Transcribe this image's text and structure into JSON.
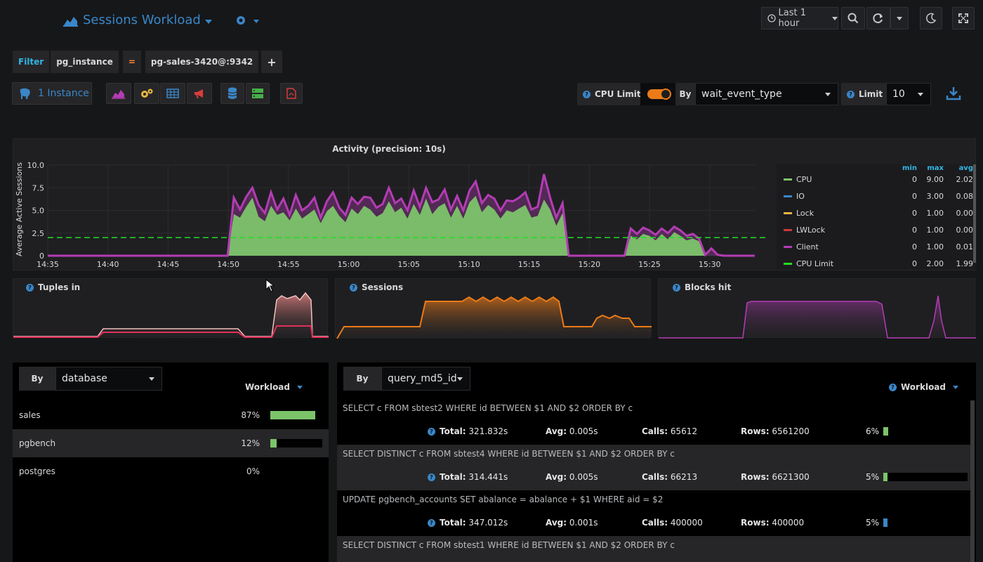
{
  "header": {
    "title": "Sessions Workload",
    "time_range": "Last 1 hour"
  },
  "filter": {
    "label": "Filter",
    "key": "pg_instance",
    "operator": "=",
    "value": "pg-sales-3420@:9342",
    "add": "+"
  },
  "toolbar": {
    "instance_label": "1 Instance",
    "cpu_limit_label": "CPU Limit",
    "by_label": "By",
    "wait_event": "wait_event_type",
    "limit_label": "Limit",
    "limit_value": "10"
  },
  "activity": {
    "title": "Activity (precision: 10s)",
    "ylabel": "Average Active Sessions",
    "legend_headers": [
      "min",
      "max",
      "avg"
    ],
    "legend": [
      {
        "name": "CPU",
        "color": "#7cc46a",
        "min": "0",
        "max": "9.00",
        "avg": "2.02"
      },
      {
        "name": "IO",
        "color": "#3a86c8",
        "min": "0",
        "max": "3.00",
        "avg": "0.08"
      },
      {
        "name": "Lock",
        "color": "#e6b540",
        "min": "0",
        "max": "1.00",
        "avg": "0.00"
      },
      {
        "name": "LWLock",
        "color": "#c63a3a",
        "min": "0",
        "max": "1.00",
        "avg": "0.00"
      },
      {
        "name": "Client",
        "color": "#b43cb4",
        "min": "0",
        "max": "1.00",
        "avg": "0.01"
      },
      {
        "name": "CPU Limit",
        "color": "#22dd22",
        "min": "0",
        "max": "2.00",
        "avg": "1.99"
      }
    ]
  },
  "chart_data": {
    "type": "area",
    "title": "Activity (precision: 10s)",
    "xlabel": "",
    "ylabel": "Average Active Sessions",
    "ylim": [
      0,
      10
    ],
    "yticks": [
      "0",
      "2.5",
      "5.0",
      "7.5",
      "10.0"
    ],
    "xticks": [
      "14:35",
      "14:40",
      "14:45",
      "14:50",
      "14:55",
      "15:00",
      "15:05",
      "15:10",
      "15:15",
      "15:20",
      "15:25",
      "15:30"
    ],
    "series": [
      {
        "name": "CPU",
        "values": [
          0,
          0,
          0,
          0,
          0,
          0,
          0,
          0,
          0,
          0,
          0,
          0,
          0,
          0,
          0,
          0,
          0,
          0,
          0,
          0,
          0,
          0,
          0,
          0,
          0,
          0,
          0,
          0,
          0,
          0,
          4.6,
          4.2,
          5.4,
          6.4,
          4.3,
          3.8,
          5.5,
          4.5,
          4.8,
          3.9,
          5.2,
          4.1,
          4.6,
          5.1,
          3.6,
          4.9,
          5.5,
          4.4,
          3.7,
          5.2,
          4.6,
          5.5,
          5.1,
          4.3,
          4.7,
          6.0,
          4.8,
          5.3,
          4.1,
          5.7,
          4.5,
          6.3,
          4.6,
          5.4,
          5.8,
          4.2,
          5.5,
          4.1,
          5.9,
          6.6,
          4.8,
          5.6,
          5.1,
          4.1,
          5.0,
          4.8,
          5.2,
          5.6,
          4.2,
          4.4,
          6.2,
          5.1,
          3.3,
          4.7,
          0,
          0,
          0,
          0,
          0,
          0,
          0,
          0,
          0,
          0,
          2.2,
          1.8,
          2.4,
          2.2,
          1.7,
          2.4,
          1.8,
          2.6,
          2.2,
          1.7,
          1.9,
          1.6,
          0,
          0,
          0,
          0,
          0,
          0,
          0,
          0,
          0
        ]
      },
      {
        "name": "Client",
        "values": [
          0,
          0,
          0,
          0,
          0,
          0,
          0,
          0,
          0,
          0,
          0,
          0,
          0,
          0,
          0,
          0,
          0,
          0,
          0,
          0,
          0,
          0,
          0,
          0,
          0,
          0,
          0,
          0,
          0,
          0,
          6.4,
          5.1,
          6.5,
          7.5,
          5.6,
          4.7,
          7.0,
          5.1,
          6.3,
          4.5,
          6.7,
          5.0,
          5.5,
          6.4,
          4.2,
          6.0,
          7.0,
          5.3,
          4.5,
          6.4,
          5.7,
          6.5,
          6.4,
          5.3,
          5.7,
          7.5,
          5.8,
          6.3,
          5.0,
          7.2,
          5.4,
          7.5,
          5.9,
          6.2,
          7.3,
          5.1,
          6.6,
          5.0,
          7.2,
          8.2,
          5.8,
          6.7,
          6.3,
          5.0,
          6.1,
          6.0,
          6.4,
          7.0,
          5.1,
          5.4,
          9.0,
          6.4,
          4.2,
          5.8,
          0,
          0,
          0,
          0,
          0,
          0,
          0,
          0,
          0,
          0,
          3.0,
          2.4,
          3.1,
          2.8,
          2.3,
          3.0,
          2.5,
          3.2,
          2.8,
          2.2,
          2.4,
          1.9,
          0.1,
          0.8,
          0.1,
          0,
          0,
          0,
          0,
          0,
          0
        ]
      },
      {
        "name": "CPU Limit",
        "values": [
          2,
          2,
          2,
          2,
          2,
          2,
          2,
          2,
          2,
          2,
          2,
          2,
          2,
          2,
          2,
          2,
          2,
          2,
          2,
          2,
          2,
          2,
          2,
          2,
          2,
          2,
          2,
          2,
          2,
          2,
          2,
          2,
          2,
          2,
          2,
          2,
          2,
          2,
          2,
          2,
          2,
          2,
          2,
          2,
          2,
          2,
          2,
          2,
          2,
          2,
          2,
          2,
          2,
          2,
          2,
          2,
          2,
          2,
          2,
          2,
          2,
          2,
          2,
          2,
          2,
          2,
          2,
          2,
          2,
          2,
          2,
          2,
          2,
          2,
          2,
          2,
          2,
          2,
          2,
          2,
          2,
          2,
          2,
          2,
          2,
          2,
          2,
          2,
          2,
          2,
          2,
          2,
          2,
          2,
          2,
          2,
          2,
          2,
          2,
          2,
          2,
          2,
          2,
          2,
          2,
          2,
          2,
          2,
          2,
          2,
          2,
          2,
          2,
          2,
          2,
          2,
          2
        ]
      }
    ]
  },
  "mini_panels": [
    {
      "title": "Tuples in"
    },
    {
      "title": "Sessions"
    },
    {
      "title": "Blocks hit"
    }
  ],
  "database_table": {
    "by_label": "By",
    "selector": "database",
    "column": "Workload",
    "rows": [
      {
        "name": "sales",
        "pct": "87%",
        "value": 0.87
      },
      {
        "name": "pgbench",
        "pct": "12%",
        "value": 0.12
      },
      {
        "name": "postgres",
        "pct": "0%",
        "value": 0.0
      }
    ]
  },
  "query_table": {
    "by_label": "By",
    "selector": "query_md5_id",
    "column": "Workload",
    "labels": {
      "total": "Total:",
      "avg": "Avg:",
      "calls": "Calls:",
      "rows": "Rows:"
    },
    "rows": [
      {
        "sql": "SELECT c FROM sbtest2 WHERE id BETWEEN $1 AND $2 ORDER BY c",
        "total": "321.832s",
        "avg": "0.005s",
        "calls": "65612",
        "rows": "6561200",
        "pct": "6%",
        "value": 0.06,
        "color": "#7cc46a"
      },
      {
        "sql": "SELECT DISTINCT c FROM sbtest4 WHERE id BETWEEN $1 AND $2 ORDER BY c",
        "total": "314.441s",
        "avg": "0.005s",
        "calls": "66213",
        "rows": "6621300",
        "pct": "5%",
        "value": 0.05,
        "color": "#7cc46a"
      },
      {
        "sql": "UPDATE pgbench_accounts SET abalance = abalance + $1 WHERE aid = $2",
        "total": "347.012s",
        "avg": "0.001s",
        "calls": "400000",
        "rows": "400000",
        "pct": "5%",
        "value": 0.05,
        "color": "#3a86c8"
      },
      {
        "sql": "SELECT DISTINCT c FROM sbtest1 WHERE id BETWEEN $1 AND $2 ORDER BY c",
        "total": "",
        "avg": "",
        "calls": "",
        "rows": "",
        "pct": "",
        "value": 0,
        "color": "#7cc46a"
      }
    ]
  }
}
